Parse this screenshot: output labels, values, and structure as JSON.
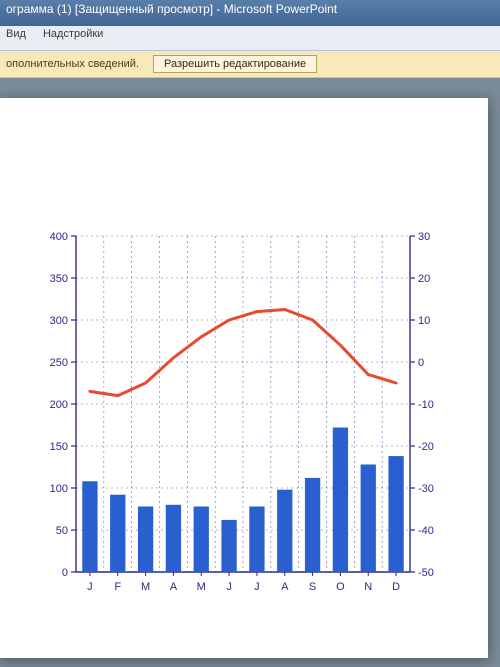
{
  "window": {
    "title": "ограмма (1) [Защищенный просмотр] - Microsoft PowerPoint"
  },
  "ribbon": {
    "tab_view": "Вид",
    "tab_addins": "Надстройки"
  },
  "protected": {
    "info_fragment": "ополнительных сведений.",
    "enable_label": "Разрешить редактирование"
  },
  "chart": {
    "type": "bar+line",
    "categories": [
      "J",
      "F",
      "M",
      "A",
      "M",
      "J",
      "J",
      "A",
      "S",
      "O",
      "N",
      "D"
    ],
    "bars": {
      "values": [
        108,
        92,
        78,
        80,
        78,
        62,
        78,
        98,
        112,
        172,
        128,
        138
      ],
      "color": "#2a5fcf",
      "ylim": [
        0,
        400
      ],
      "ytick_step": 50
    },
    "line": {
      "values": [
        -7,
        -8,
        -5,
        1,
        6,
        10,
        12,
        12.5,
        10,
        4,
        -3,
        -5
      ],
      "color": "#e84a2e",
      "width": 3,
      "ylim": [
        -50,
        30
      ],
      "ytick_step": 10
    },
    "axis_label_fontsize": 11,
    "axis_color": "#2a2a8a",
    "grid_color": "#2a2a8a",
    "grid_dash": "2 3",
    "background_color": "#ffffff",
    "plot_bg": "#ffffff"
  }
}
